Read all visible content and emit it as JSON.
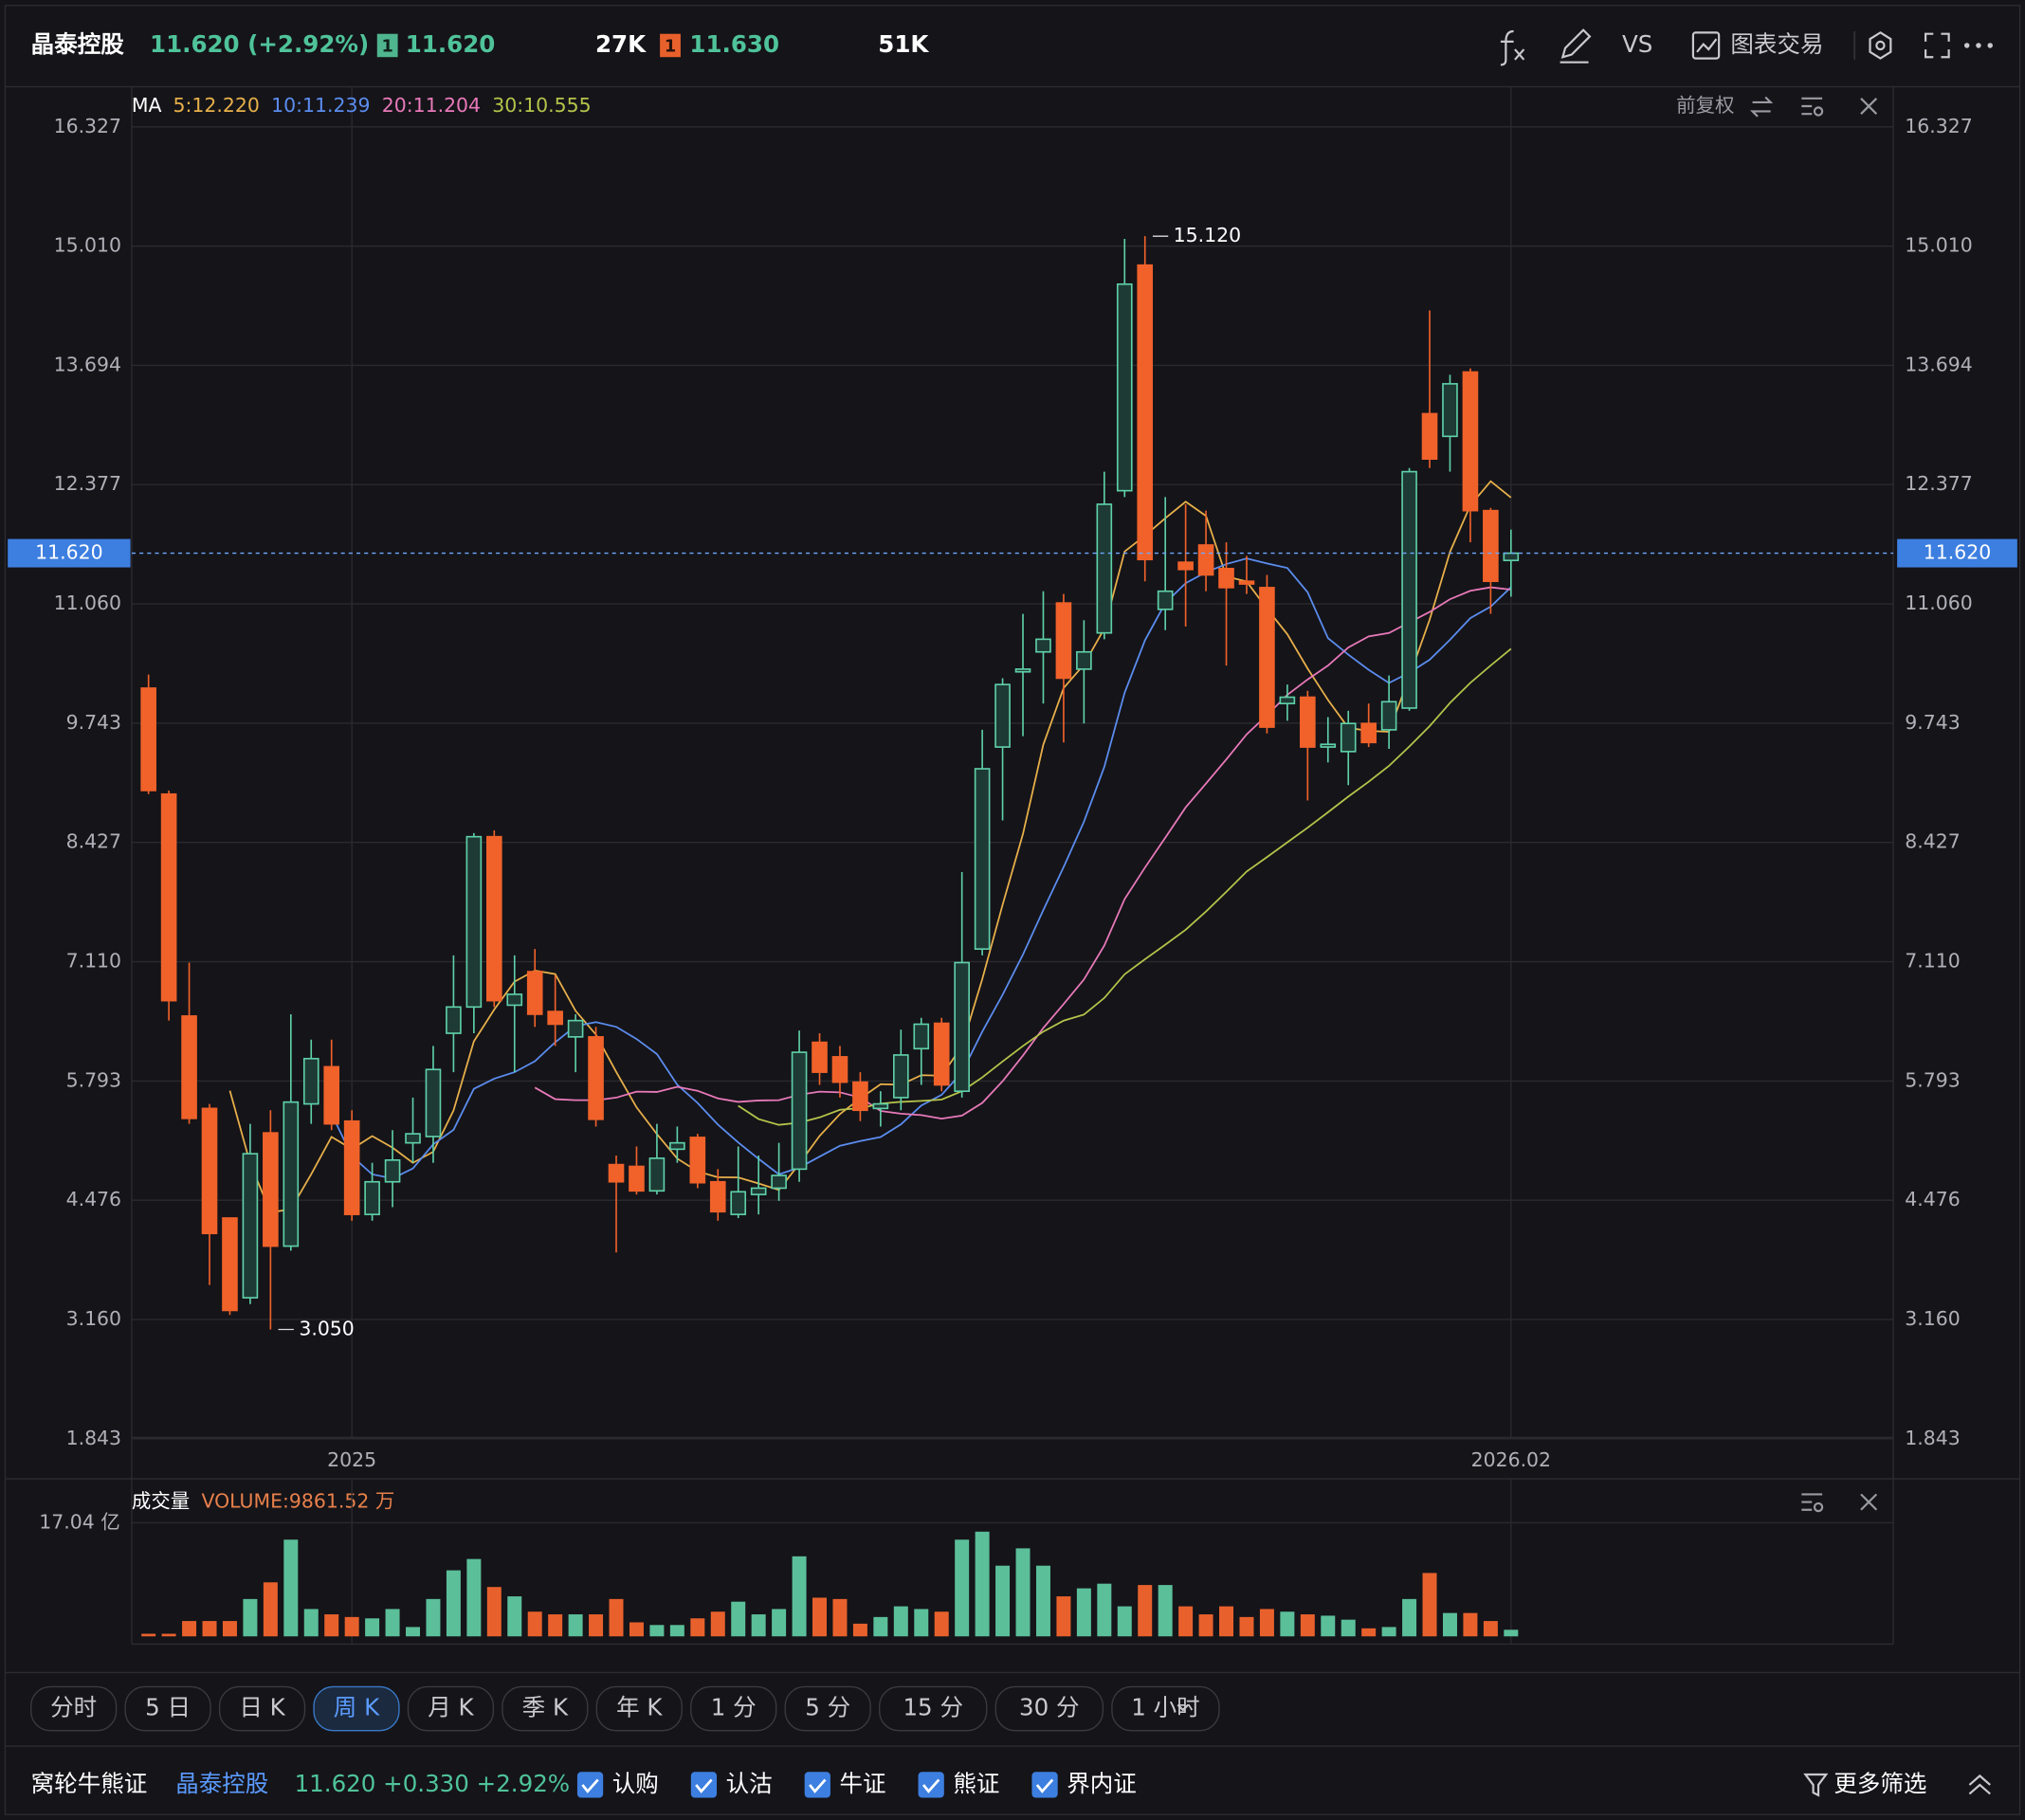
{
  "header": {
    "name": "晶泰控股",
    "quote": "11.620 (+2.92%)",
    "bid_level": "1",
    "bid": "11.620",
    "bid_size": "27K",
    "ask_level": "1",
    "ask": "11.630",
    "ask_size": "51K",
    "compare": "VS",
    "trade": "图表交易"
  },
  "chart_data": [
    {
      "type": "candlestick",
      "adjust": "前复权",
      "indicator": {
        "name": "MA",
        "lines": [
          {
            "label": "5:12.220",
            "color": "#e8b04a"
          },
          {
            "label": "10:11.239",
            "color": "#5b8def"
          },
          {
            "label": "20:11.204",
            "color": "#e879b9"
          },
          {
            "label": "30:10.555",
            "color": "#b5c44a"
          }
        ]
      },
      "categories": [
        null,
        null,
        null,
        null,
        null,
        null,
        null,
        null,
        null,
        null,
        "2025",
        null,
        null,
        null,
        null,
        null,
        null,
        null,
        null,
        null,
        null,
        null,
        null,
        null,
        null,
        null,
        null,
        null,
        null,
        null,
        null,
        null,
        null,
        null,
        null,
        null,
        null,
        null,
        null,
        null,
        null,
        null,
        null,
        null,
        null,
        null,
        null,
        null,
        null,
        null,
        null,
        null,
        null,
        null,
        null,
        null,
        null,
        null,
        null,
        null,
        null,
        null,
        null,
        null,
        null,
        null,
        null,
        "2026.02"
      ],
      "open": [
        10.13,
        8.96,
        6.51,
        5.49,
        4.28,
        3.4,
        5.22,
        3.97,
        5.54,
        5.95,
        5.35,
        4.32,
        4.68,
        5.11,
        5.18,
        6.32,
        6.61,
        8.49,
        6.63,
        7.0,
        6.56,
        6.28,
        6.28,
        4.87,
        4.85,
        4.58,
        5.04,
        5.17,
        4.68,
        4.32,
        4.54,
        4.61,
        4.82,
        6.22,
        6.06,
        5.78,
        5.49,
        5.61,
        6.15,
        6.43,
        5.68,
        7.25,
        9.48,
        10.31,
        10.53,
        11.07,
        10.34,
        10.74,
        12.31,
        14.8,
        11.0,
        11.52,
        11.71,
        11.45,
        11.31,
        11.24,
        9.96,
        10.03,
        9.48,
        9.43,
        9.74,
        9.67,
        9.91,
        13.16,
        12.91,
        13.62,
        12.09,
        11.54
      ],
      "high": [
        10.28,
        9.0,
        7.1,
        5.54,
        4.28,
        5.32,
        5.47,
        6.53,
        6.25,
        6.25,
        5.47,
        4.89,
        5.25,
        5.61,
        6.18,
        7.18,
        8.53,
        8.56,
        7.18,
        7.25,
        6.96,
        6.53,
        6.39,
        4.97,
        5.07,
        5.32,
        5.29,
        5.21,
        4.82,
        5.07,
        4.97,
        5.11,
        6.35,
        6.32,
        6.18,
        5.89,
        5.68,
        6.36,
        6.49,
        6.49,
        8.1,
        9.67,
        10.24,
        10.95,
        11.2,
        11.17,
        10.88,
        12.52,
        15.09,
        15.12,
        12.24,
        12.16,
        12.09,
        11.74,
        11.59,
        11.38,
        10.17,
        10.1,
        9.81,
        9.88,
        9.96,
        10.27,
        12.56,
        14.3,
        13.59,
        13.66,
        12.12,
        11.88
      ],
      "low": [
        8.96,
        6.46,
        5.32,
        3.54,
        3.21,
        3.33,
        3.05,
        3.92,
        5.32,
        5.25,
        4.25,
        4.25,
        4.4,
        4.89,
        4.89,
        5.89,
        6.32,
        6.61,
        5.89,
        6.39,
        6.18,
        5.89,
        5.29,
        3.9,
        4.54,
        4.54,
        4.89,
        4.61,
        4.25,
        4.28,
        4.32,
        4.47,
        4.68,
        5.75,
        5.61,
        5.35,
        5.29,
        5.47,
        5.75,
        5.68,
        5.61,
        7.18,
        8.67,
        9.6,
        9.96,
        9.53,
        9.74,
        10.67,
        12.24,
        11.31,
        10.77,
        10.81,
        11.2,
        10.38,
        11.17,
        9.63,
        9.77,
        8.89,
        9.31,
        9.06,
        9.48,
        9.46,
        9.88,
        12.56,
        12.52,
        11.74,
        10.95,
        11.14
      ],
      "close": [
        9.0,
        6.68,
        5.38,
        4.11,
        3.26,
        4.99,
        3.97,
        5.56,
        6.04,
        5.32,
        4.32,
        4.68,
        4.92,
        5.21,
        5.92,
        6.61,
        8.49,
        6.68,
        6.75,
        6.53,
        6.42,
        6.46,
        5.37,
        4.68,
        4.58,
        4.94,
        5.11,
        4.67,
        4.35,
        4.57,
        4.61,
        4.75,
        6.11,
        5.89,
        5.78,
        5.47,
        5.54,
        6.08,
        6.42,
        5.75,
        7.1,
        9.24,
        10.17,
        10.34,
        10.67,
        10.24,
        10.53,
        12.16,
        14.59,
        11.55,
        11.2,
        11.44,
        11.38,
        11.24,
        11.28,
        9.7,
        10.03,
        9.48,
        9.51,
        9.74,
        9.53,
        9.98,
        12.52,
        12.66,
        13.49,
        12.09,
        11.31,
        11.62
      ],
      "up_color": "#5fd0a8",
      "down_color": "#f0622a",
      "ylim": [
        1.843,
        16.327
      ],
      "yticks": [
        16.327,
        {
          "value": 15.01,
          "label": "15.010"
        },
        13.694,
        12.377,
        {
          "value": 11.06,
          "label": "11.060"
        },
        9.743,
        8.427,
        {
          "value": 7.11,
          "label": "7.110"
        },
        5.793,
        4.476,
        {
          "value": 3.16,
          "label": "3.160"
        },
        1.843
      ],
      "grid": true,
      "current": {
        "value": 11.62,
        "label": "11.620"
      },
      "annotations": [
        {
          "value": 15.12,
          "label": "15.120"
        },
        {
          "value": 3.05,
          "label": "3.050"
        }
      ]
    },
    {
      "type": "volume",
      "title": "成交量",
      "label": "VOLUME:9861.52 万",
      "values": [
        0.39,
        0.39,
        2.3,
        2.3,
        2.3,
        5.6,
        8.1,
        14.5,
        4.1,
        3.3,
        2.9,
        2.7,
        4.1,
        1.4,
        5.6,
        9.9,
        11.6,
        7.4,
        6.0,
        3.7,
        3.3,
        3.3,
        3.3,
        5.6,
        2.1,
        1.7,
        1.7,
        2.7,
        3.7,
        5.2,
        3.3,
        4.1,
        12.0,
        5.8,
        5.6,
        1.9,
        2.9,
        4.5,
        4.1,
        3.7,
        14.5,
        15.7,
        10.6,
        13.2,
        10.6,
        6.0,
        7.2,
        7.9,
        4.5,
        7.7,
        7.7,
        4.5,
        3.3,
        4.5,
        2.9,
        4.1,
        3.7,
        3.3,
        3.1,
        2.5,
        1.2,
        1.4,
        5.6,
        9.5,
        3.5,
        3.5,
        2.3,
        0.9862
      ],
      "ylim": [
        0,
        17.04
      ],
      "yticks": [
        {
          "value": 17.04,
          "label": "17.04 亿"
        }
      ],
      "up_color": "#5bbf9a",
      "down_color": "#e8612c"
    }
  ],
  "timeframes": [
    {
      "label": "分时"
    },
    {
      "label": "5 日"
    },
    {
      "label": "日 K"
    },
    {
      "label": "周 K",
      "selected": true
    },
    {
      "label": "月 K"
    },
    {
      "label": "季 K"
    },
    {
      "label": "年 K"
    },
    {
      "label": "1 分"
    },
    {
      "label": "5 分"
    },
    {
      "label": "15 分"
    },
    {
      "label": "30 分"
    },
    {
      "label": "1 小时"
    }
  ],
  "footer": {
    "title": "窝轮牛熊证",
    "name": "晶泰控股",
    "quote": "11.620 +0.330 +2.92%",
    "filters": [
      "认购",
      "认沽",
      "牛证",
      "熊证",
      "界内证"
    ],
    "more": "更多筛选"
  }
}
